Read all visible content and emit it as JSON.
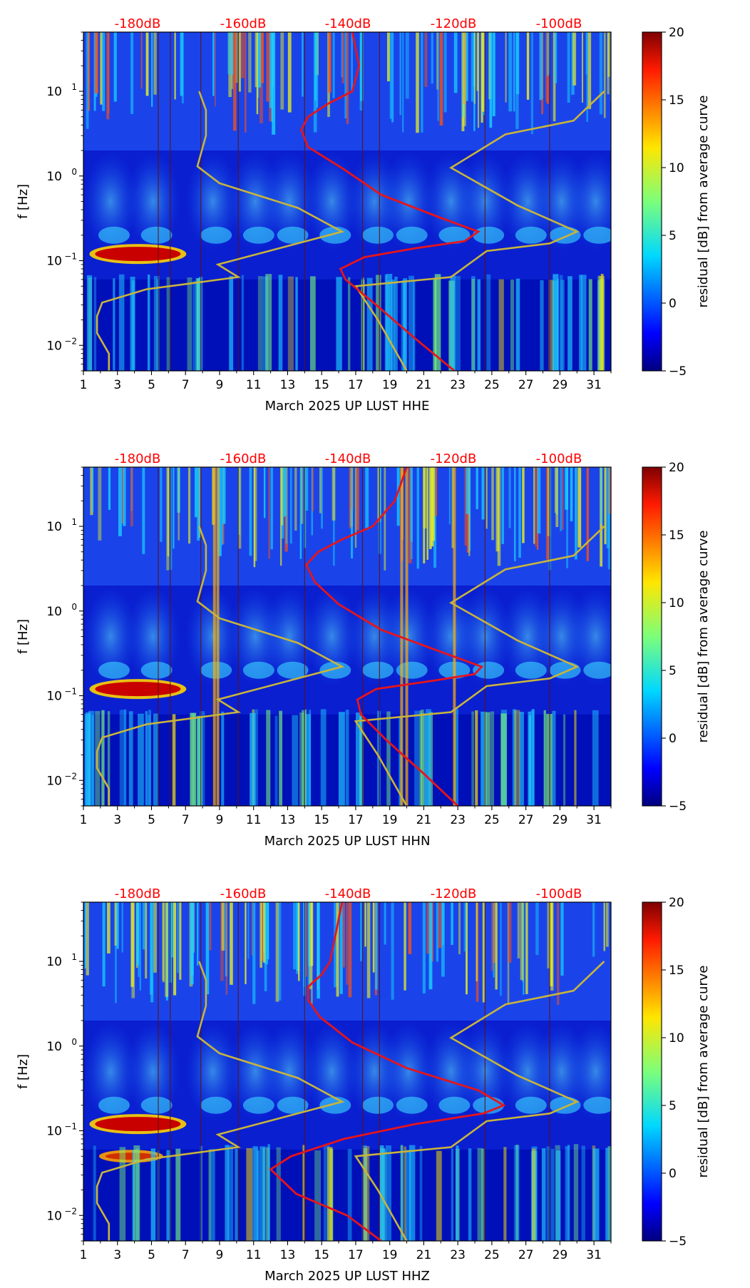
{
  "chart_data": [
    {
      "type": "heatmap",
      "xlabel": "March 2025 UP LUST  HHE",
      "ylabel": "f [Hz]",
      "x_ticks": [
        "1",
        "3",
        "5",
        "7",
        "9",
        "11",
        "13",
        "15",
        "17",
        "19",
        "21",
        "23",
        "25",
        "27",
        "29",
        "31"
      ],
      "xlim": [
        1,
        32
      ],
      "ylim": [
        0.005,
        50
      ],
      "y_scale": "log",
      "y_tick_values": [
        0.01,
        0.1,
        1,
        10
      ],
      "top_labels": [
        "-180dB",
        "-160dB",
        "-140dB",
        "-120dB",
        "-100dB"
      ],
      "top_label_color": "#ff0000",
      "colorbar": {
        "label": "residual [dB] from average curve",
        "min": -5,
        "max": 20,
        "ticks": [
          "−5",
          "0",
          "5",
          "10",
          "15",
          "20"
        ],
        "colormap": "jet"
      }
    },
    {
      "type": "heatmap",
      "xlabel": "March 2025 UP LUST  HHN",
      "ylabel": "f [Hz]",
      "x_ticks": [
        "1",
        "3",
        "5",
        "7",
        "9",
        "11",
        "13",
        "15",
        "17",
        "19",
        "21",
        "23",
        "25",
        "27",
        "29",
        "31"
      ],
      "xlim": [
        1,
        32
      ],
      "ylim": [
        0.005,
        50
      ],
      "y_scale": "log",
      "y_tick_values": [
        0.01,
        0.1,
        1,
        10
      ],
      "top_labels": [
        "-180dB",
        "-160dB",
        "-140dB",
        "-120dB",
        "-100dB"
      ],
      "top_label_color": "#ff0000",
      "colorbar": {
        "label": "residual [dB] from average curve",
        "min": -5,
        "max": 20,
        "ticks": [
          "−5",
          "0",
          "5",
          "10",
          "15",
          "20"
        ],
        "colormap": "jet"
      }
    },
    {
      "type": "heatmap",
      "xlabel": "March 2025 UP LUST  HHZ",
      "ylabel": "f [Hz]",
      "x_ticks": [
        "1",
        "3",
        "5",
        "7",
        "9",
        "11",
        "13",
        "15",
        "17",
        "19",
        "21",
        "23",
        "25",
        "27",
        "29",
        "31"
      ],
      "xlim": [
        1,
        32
      ],
      "ylim": [
        0.005,
        50
      ],
      "y_scale": "log",
      "y_tick_values": [
        0.01,
        0.1,
        1,
        10
      ],
      "top_labels": [
        "-180dB",
        "-160dB",
        "-140dB",
        "-120dB",
        "-100dB"
      ],
      "top_label_color": "#ff0000",
      "colorbar": {
        "label": "residual [dB] from average curve",
        "min": -5,
        "max": 20,
        "ticks": [
          "−5",
          "0",
          "5",
          "10",
          "15",
          "20"
        ],
        "colormap": "jet"
      }
    }
  ],
  "colors": {
    "background_colormap_low": "#00008f",
    "red_curve": "#e8141a",
    "yellow_curve": "#c8b43c"
  }
}
